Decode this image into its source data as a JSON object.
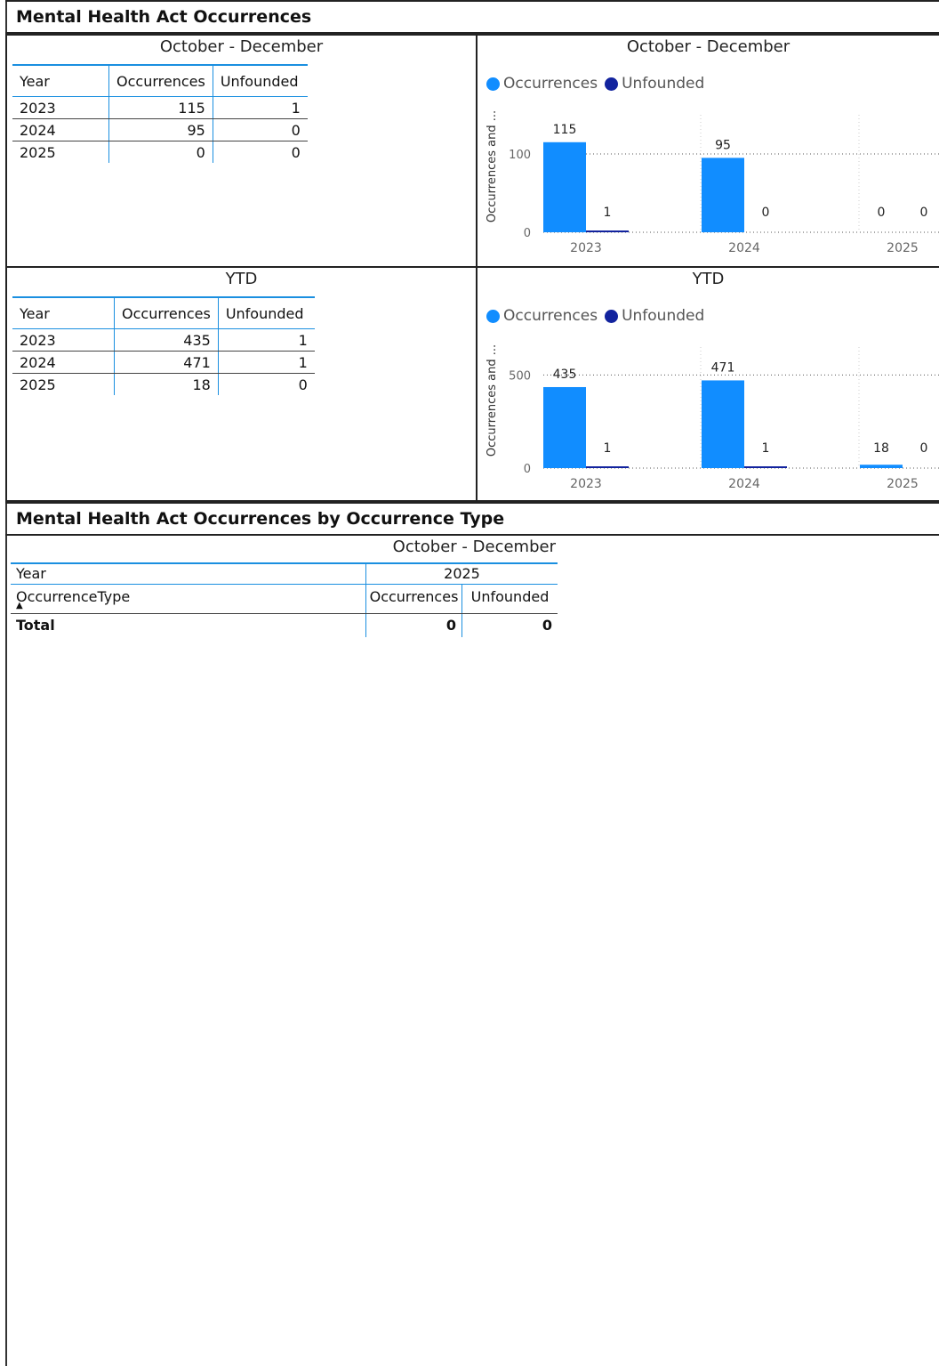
{
  "section1": {
    "title": "Mental Health Act Occurrences"
  },
  "tables": [
    {
      "title": "October - December",
      "headers": [
        "Year",
        "Occurrences",
        "Unfounded"
      ],
      "rows": [
        [
          "2023",
          "115",
          "1"
        ],
        [
          "2024",
          "95",
          "0"
        ],
        [
          "2025",
          "0",
          "0"
        ]
      ]
    },
    {
      "title": "YTD",
      "headers": [
        "Year",
        "Occurrences",
        "Unfounded"
      ],
      "rows": [
        [
          "2023",
          "435",
          "1"
        ],
        [
          "2024",
          "471",
          "1"
        ],
        [
          "2025",
          "18",
          "0"
        ]
      ]
    }
  ],
  "colors": {
    "occurrences": "#118DFF",
    "unfounded": "#12239E",
    "accent": "#1a8fe0"
  },
  "legend": {
    "occurrences": "Occurrences",
    "unfounded": "Unfounded"
  },
  "chart_data": [
    {
      "type": "bar",
      "title": "October - December",
      "ylabel": "Occurrences and ...",
      "categories": [
        "2023",
        "2024",
        "2025"
      ],
      "series": [
        {
          "name": "Occurrences",
          "values": [
            115,
            95,
            0
          ]
        },
        {
          "name": "Unfounded",
          "values": [
            1,
            0,
            0
          ]
        }
      ],
      "yticks": [
        0,
        100
      ],
      "ylim": [
        0,
        150
      ],
      "grid": true,
      "legend": "top-left"
    },
    {
      "type": "bar",
      "title": "YTD",
      "ylabel": "Occurrences and ...",
      "categories": [
        "2023",
        "2024",
        "2025"
      ],
      "series": [
        {
          "name": "Occurrences",
          "values": [
            435,
            471,
            18
          ]
        },
        {
          "name": "Unfounded",
          "values": [
            1,
            1,
            0
          ]
        }
      ],
      "yticks": [
        0,
        500
      ],
      "ylim": [
        0,
        650
      ],
      "grid": true,
      "legend": "top-left"
    }
  ],
  "section2": {
    "title": "Mental Health Act Occurrences by Occurrence Type",
    "matrix_title": "October - December",
    "year_label": "Year",
    "year_value": "2025",
    "type_label": "OccurrenceType",
    "col_occ": "Occurrences",
    "col_unf": "Unfounded",
    "total_label": "Total",
    "total_occ": "0",
    "total_unf": "0"
  }
}
